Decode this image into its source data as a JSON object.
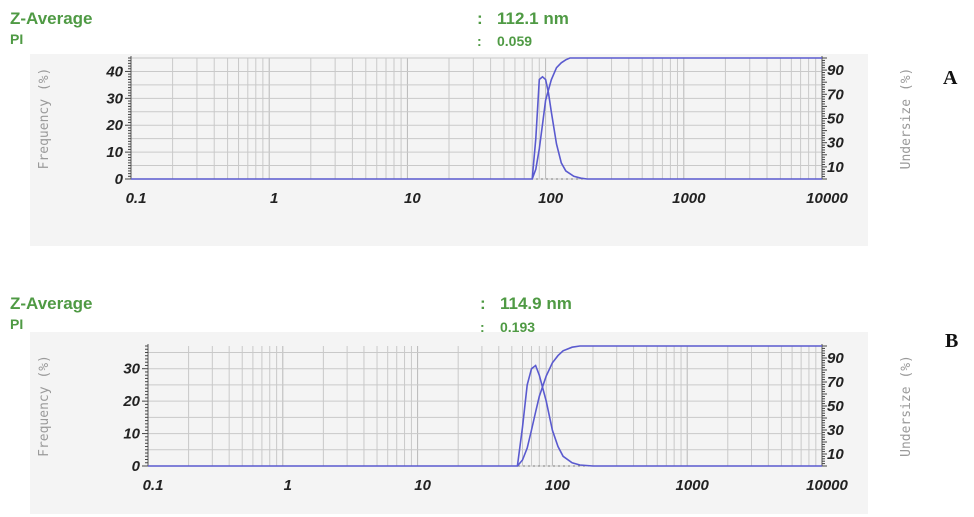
{
  "charts": [
    {
      "panel_label": "A",
      "z_average_label": "Z-Average",
      "z_average_colon": ":",
      "z_average_value": "112.1 nm",
      "pi_label": "PI",
      "pi_colon": ":",
      "pi_value": "0.059"
    },
    {
      "panel_label": "B",
      "z_average_label": "Z-Average",
      "z_average_colon": ":",
      "z_average_value": "114.9 nm",
      "pi_label": "PI",
      "pi_colon": ":",
      "pi_value": "0.193"
    }
  ],
  "colors": {
    "header_text": "#4f9a44",
    "curve": "#5a5acf",
    "grid": "#c9c9c9",
    "axis_title": "#9a9a9a"
  },
  "chart_data": [
    {
      "type": "line",
      "xlabel": "",
      "ylabel": "Frequency (%)",
      "y2label": "Undersize (%)",
      "xscale": "log",
      "xlim": [
        0.1,
        10000
      ],
      "x_ticks": [
        0.1,
        1,
        10,
        100,
        1000,
        10000
      ],
      "x_tick_labels": [
        "0.1",
        "1",
        "10",
        "100",
        "1000",
        "10000"
      ],
      "ylim": [
        0,
        45
      ],
      "y_ticks": [
        0,
        10,
        20,
        30,
        40
      ],
      "y_tick_labels": [
        "0",
        "10",
        "20",
        "30",
        "40"
      ],
      "y2lim": [
        0,
        100
      ],
      "y2_ticks": [
        10,
        30,
        50,
        70,
        90
      ],
      "y2_tick_labels": [
        "10",
        "30",
        "50",
        "70",
        "90"
      ],
      "grid": true,
      "series": [
        {
          "axis": "left",
          "x": [
            0.1,
            80,
            85,
            90,
            95,
            100,
            105,
            110,
            120,
            130,
            140,
            160,
            180,
            200,
            10000
          ],
          "y": [
            0,
            0,
            15,
            37,
            38,
            37,
            32,
            25,
            13,
            6,
            3,
            1,
            0.3,
            0,
            0
          ]
        },
        {
          "axis": "right",
          "x": [
            80,
            85,
            90,
            95,
            100,
            110,
            120,
            130,
            140,
            150,
            10000
          ],
          "y": [
            0,
            8,
            25,
            45,
            65,
            82,
            92,
            96,
            98.5,
            100,
            100
          ]
        }
      ]
    },
    {
      "type": "line",
      "xlabel": "",
      "ylabel": "Frequency (%)",
      "y2label": "Undersize (%)",
      "xscale": "log",
      "xlim": [
        0.1,
        10000
      ],
      "x_ticks": [
        0.1,
        1,
        10,
        100,
        1000,
        10000
      ],
      "x_tick_labels": [
        "0.1",
        "1",
        "10",
        "100",
        "1000",
        "10000"
      ],
      "ylim": [
        0,
        37
      ],
      "y_ticks": [
        0,
        10,
        20,
        30
      ],
      "y_tick_labels": [
        "0",
        "10",
        "20",
        "30"
      ],
      "y2lim": [
        0,
        100
      ],
      "y2_ticks": [
        10,
        30,
        50,
        70,
        90
      ],
      "y2_tick_labels": [
        "10",
        "30",
        "50",
        "70",
        "90"
      ],
      "grid": true,
      "series": [
        {
          "axis": "left",
          "x": [
            0.1,
            55,
            60,
            65,
            70,
            75,
            80,
            90,
            100,
            110,
            120,
            140,
            160,
            200,
            2000,
            10000
          ],
          "y": [
            0,
            0,
            12,
            25,
            30,
            31,
            28,
            20,
            11,
            6,
            3,
            1,
            0.3,
            0,
            0,
            0
          ]
        },
        {
          "axis": "right",
          "x": [
            55,
            60,
            65,
            70,
            75,
            80,
            90,
            100,
            110,
            120,
            140,
            160,
            10000
          ],
          "y": [
            0,
            5,
            15,
            30,
            45,
            58,
            75,
            86,
            92,
            96,
            99,
            100,
            100
          ]
        }
      ]
    }
  ]
}
